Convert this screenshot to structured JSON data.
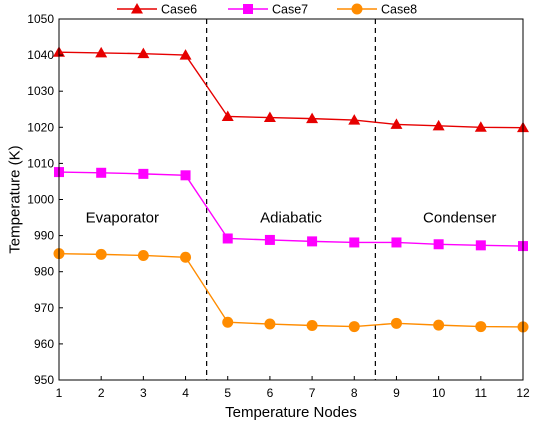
{
  "chart_data": {
    "type": "line",
    "xlabel": "Temperature Nodes",
    "ylabel": "Temperature (K)",
    "xlim": [
      1,
      12
    ],
    "ylim": [
      950,
      1050
    ],
    "x": [
      1,
      2,
      3,
      4,
      5,
      6,
      7,
      8,
      9,
      10,
      11,
      12
    ],
    "x_ticks": [
      "1",
      "2",
      "3",
      "4",
      "5",
      "6",
      "7",
      "8",
      "9",
      "10",
      "11",
      "12"
    ],
    "y_ticks": [
      "950",
      "960",
      "970",
      "980",
      "990",
      "1000",
      "1010",
      "1020",
      "1030",
      "1040",
      "1050"
    ],
    "grid": false,
    "legend_position": "top",
    "series": [
      {
        "name": "Case6",
        "color": "#e60000",
        "marker": "triangle",
        "values": [
          1040.8,
          1040.6,
          1040.4,
          1040.0,
          1023.0,
          1022.7,
          1022.4,
          1022.0,
          1020.8,
          1020.4,
          1020.0,
          1019.9
        ]
      },
      {
        "name": "Case7",
        "color": "#ff00ff",
        "marker": "square",
        "values": [
          1007.6,
          1007.4,
          1007.1,
          1006.7,
          989.2,
          988.8,
          988.4,
          988.1,
          988.1,
          987.6,
          987.3,
          987.1
        ]
      },
      {
        "name": "Case8",
        "color": "#ff8c00",
        "marker": "circle",
        "values": [
          985.0,
          984.8,
          984.5,
          984.0,
          966.0,
          965.5,
          965.1,
          964.8,
          965.7,
          965.2,
          964.8,
          964.7
        ]
      }
    ],
    "dividers": [
      4.5,
      8.5
    ],
    "annotations": [
      {
        "text": "Evaporator",
        "x": 2.5,
        "y": 995
      },
      {
        "text": "Adiabatic",
        "x": 6.5,
        "y": 995
      },
      {
        "text": "Condenser",
        "x": 10.5,
        "y": 995
      }
    ]
  }
}
